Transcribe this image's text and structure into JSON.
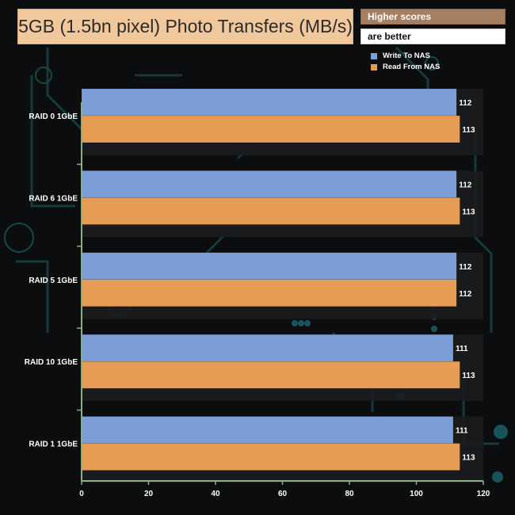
{
  "header": {
    "title": "5GB (1.5bn pixel) Photo Transfers (MB/s)",
    "note_line1": "Higher scores",
    "note_line2": "are better"
  },
  "colors": {
    "write": "#7c9ed6",
    "read": "#e59c55",
    "axis": "#8fae86",
    "label_text": "#ffffff"
  },
  "chart_data": {
    "type": "bar",
    "orientation": "horizontal",
    "title": "5GB (1.5bn pixel) Photo Transfers (MB/s)",
    "categories": [
      "RAID 0 1GbE",
      "RAID 6 1GbE",
      "RAID 5 1GbE",
      "RAID 10 1GbE",
      "RAID 1 1GbE"
    ],
    "series": [
      {
        "name": "Write To NAS",
        "values": [
          112,
          112,
          112,
          111,
          111
        ]
      },
      {
        "name": "Read From NAS",
        "values": [
          113,
          113,
          112,
          113,
          113
        ]
      }
    ],
    "xlim": [
      0,
      120
    ],
    "xticks": [
      0,
      20,
      40,
      60,
      80,
      100,
      120
    ],
    "data_labels": true,
    "legend": "top-right",
    "grid": false
  }
}
